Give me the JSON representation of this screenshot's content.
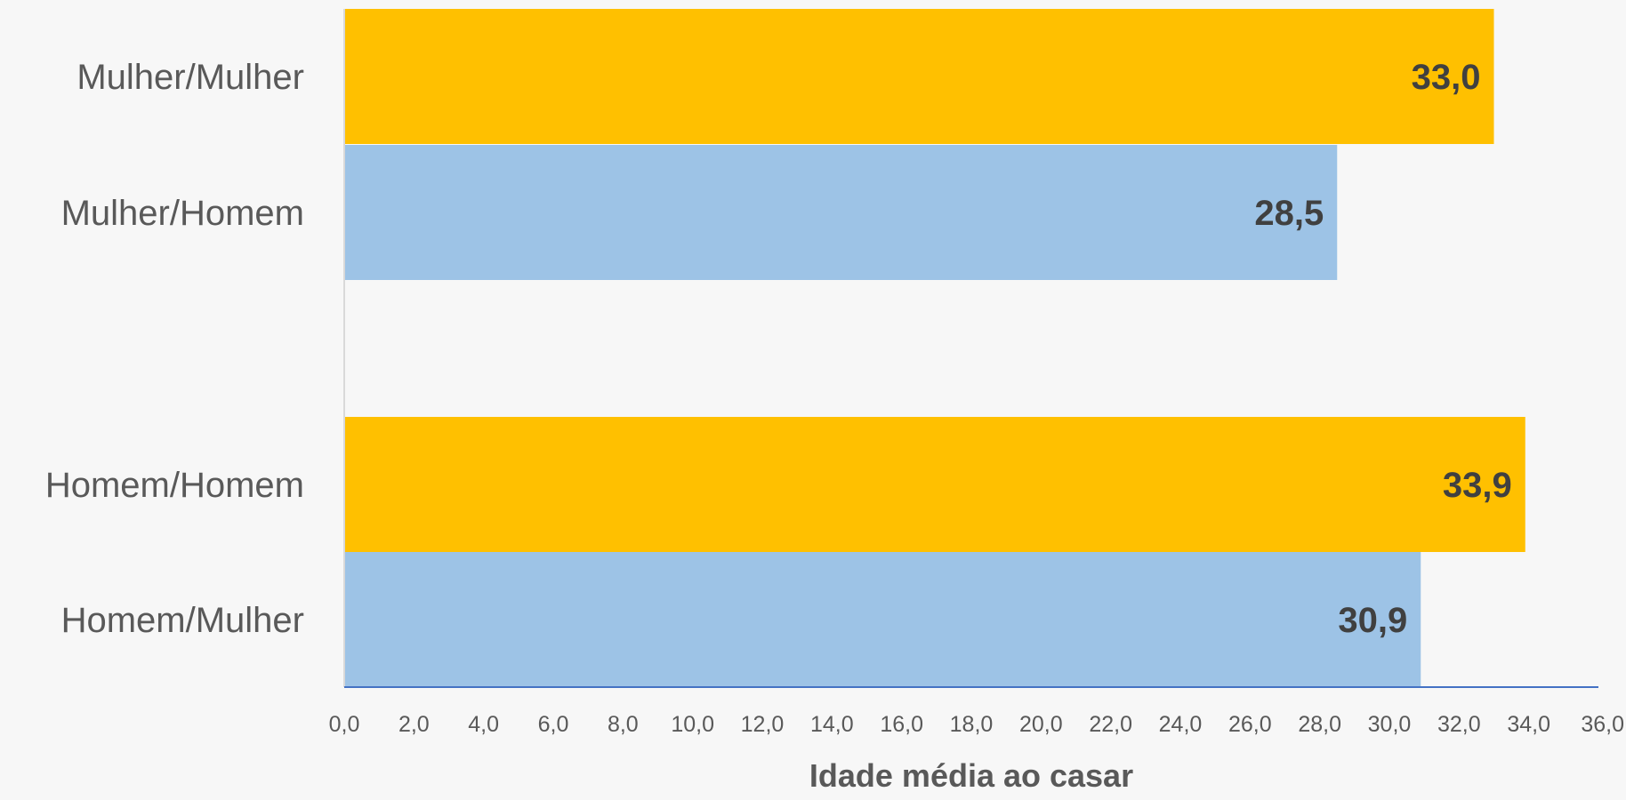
{
  "chart_data": {
    "type": "bar",
    "orientation": "horizontal",
    "categories": [
      "Mulher/Mulher",
      "Mulher/Homem",
      "Homem/Homem",
      "Homem/Mulher"
    ],
    "values": [
      33.0,
      28.5,
      33.9,
      30.9
    ],
    "value_labels": [
      "33,0",
      "28,5",
      "33,9",
      "30,9"
    ],
    "xlabel": "Idade média ao casar",
    "ylabel": "",
    "xlim": [
      0,
      36
    ],
    "ticks": [
      "0,0",
      "2,0",
      "4,0",
      "6,0",
      "8,0",
      "10,0",
      "12,0",
      "14,0",
      "16,0",
      "18,0",
      "20,0",
      "22,0",
      "24,0",
      "26,0",
      "28,0",
      "30,0",
      "32,0",
      "34,0",
      "36,0"
    ],
    "tick_values": [
      0,
      2,
      4,
      6,
      8,
      10,
      12,
      14,
      16,
      18,
      20,
      22,
      24,
      26,
      28,
      30,
      32,
      34,
      36
    ],
    "colors": {
      "same_sex": "#ffc000",
      "opposite_sex": "#9dc3e6",
      "axis_line": "#4472c4",
      "value_axis_line": "#d9d9d9"
    },
    "grid": false,
    "legend": "none"
  }
}
